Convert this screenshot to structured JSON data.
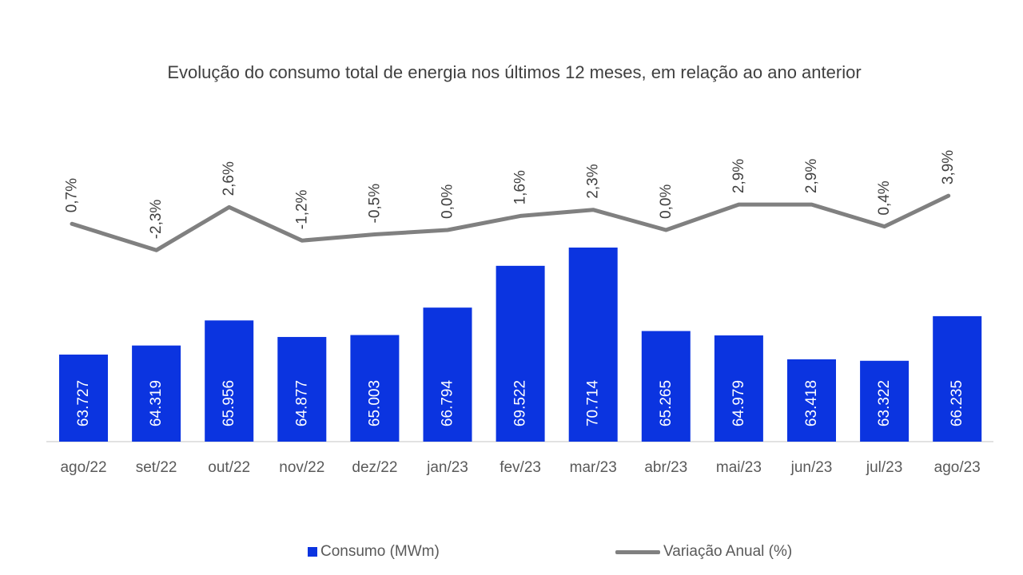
{
  "chart_data": {
    "type": "bar+line",
    "title": "Evolução do consumo total de energia nos últimos 12 meses, em relação ao ano anterior",
    "categories": [
      "ago/22",
      "set/22",
      "out/22",
      "nov/22",
      "dez/22",
      "jan/23",
      "fev/23",
      "mar/23",
      "abr/23",
      "mai/23",
      "jun/23",
      "jul/23",
      "ago/23"
    ],
    "series": [
      {
        "name": "Consumo (MWm)",
        "type": "bar",
        "color": "#0b34e0",
        "values": [
          63727,
          64319,
          65956,
          64877,
          65003,
          66794,
          69522,
          70714,
          65265,
          64979,
          63418,
          63322,
          66235
        ],
        "labels": [
          "63.727",
          "64.319",
          "65.956",
          "64.877",
          "65.003",
          "66.794",
          "69.522",
          "70.714",
          "65.265",
          "64.979",
          "63.418",
          "63.322",
          "66.235"
        ]
      },
      {
        "name": "Variação Anual (%)",
        "type": "line",
        "color": "#808080",
        "values": [
          0.7,
          -2.3,
          2.6,
          -1.2,
          -0.5,
          0.0,
          1.6,
          2.3,
          0.0,
          2.9,
          2.9,
          0.4,
          3.9
        ],
        "labels": [
          "0,7%",
          "-2,3%",
          "2,6%",
          "-1,2%",
          "-0,5%",
          "0,0%",
          "1,6%",
          "2,3%",
          "0,0%",
          "2,9%",
          "2,9%",
          "0,4%",
          "3,9%"
        ]
      }
    ],
    "legend_position": "bottom",
    "grid": false
  }
}
